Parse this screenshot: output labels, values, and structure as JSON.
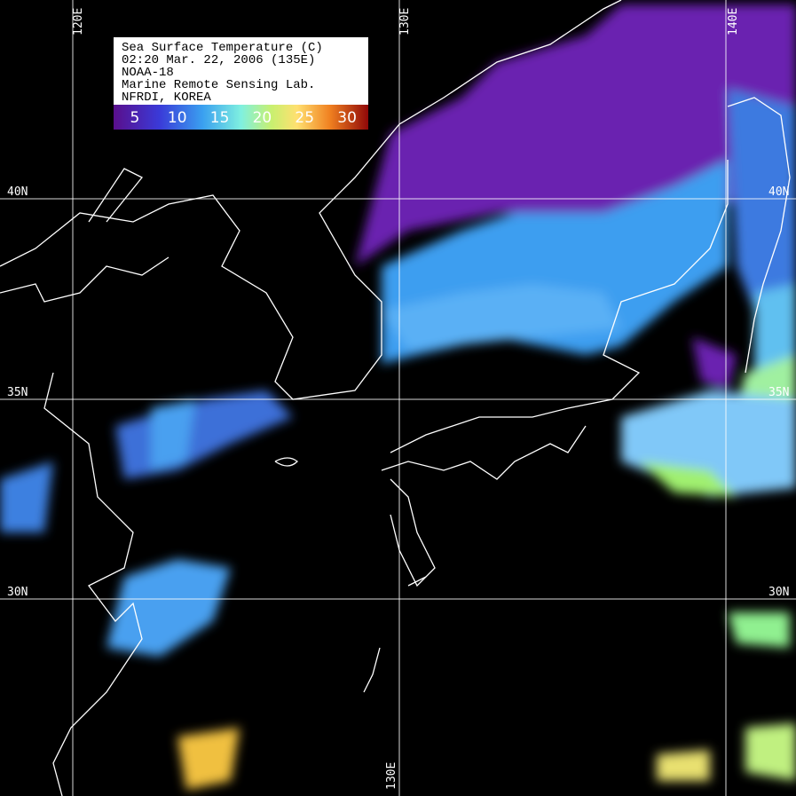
{
  "legend": {
    "lines": [
      "Sea Surface Temperature (C)",
      "02:20  Mar. 22, 2006 (135E)",
      "NOAA-18",
      "Marine Remote Sensing Lab.",
      "NFRDI, KOREA"
    ]
  },
  "colorbar": {
    "ticks": [
      5,
      10,
      15,
      20,
      25,
      30
    ]
  },
  "grid": {
    "meridians": [
      "120E",
      "130E",
      "140E"
    ],
    "parallels": [
      "40N",
      "35N",
      "30N"
    ]
  }
}
